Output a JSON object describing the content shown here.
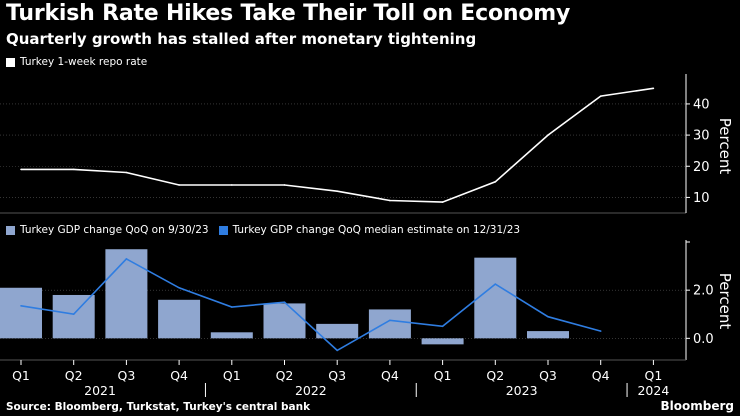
{
  "header": {
    "title": "Turkish Rate Hikes Take Their Toll on Economy",
    "subtitle": "Quarterly growth has stalled after monetary tightening"
  },
  "footer": {
    "source": "Source: Bloomberg, Turkstat, Turkey's central bank",
    "brand": "Bloomberg"
  },
  "colors": {
    "background": "#000000",
    "repo_line": "#ffffff",
    "gdp_bar": "#8fa6cf",
    "median_line": "#2f7de1",
    "grid": "#555555"
  },
  "chart_data": [
    {
      "type": "line",
      "legend": [
        "Turkey 1-week repo rate"
      ],
      "ylabel": "Percent",
      "yticks": [
        "10",
        "20",
        "30",
        "40"
      ],
      "ylim": [
        5,
        48
      ],
      "x": [
        "Q1 2021",
        "Q2 2021",
        "Q3 2021",
        "Q4 2021",
        "Q1 2022",
        "Q2 2022",
        "Q3 2022",
        "Q4 2022",
        "Q1 2023",
        "Q2 2023",
        "Q3 2023",
        "Q4 2023",
        "Q1 2024"
      ],
      "series": [
        {
          "name": "Turkey 1-week repo rate",
          "values": [
            19,
            19,
            18,
            14,
            14,
            14,
            12,
            9,
            8.5,
            15,
            30,
            42.5,
            45
          ]
        }
      ]
    },
    {
      "type": "bar",
      "legend": [
        "Turkey GDP change QoQ on 9/30/23",
        "Turkey GDP change QoQ median estimate on 12/31/23"
      ],
      "ylabel": "Percent",
      "yticks": [
        "0.0",
        "2.0"
      ],
      "ylim": [
        -0.9,
        4.0
      ],
      "categories": [
        "Q1",
        "Q2",
        "Q3",
        "Q4",
        "Q1",
        "Q2",
        "Q3",
        "Q4",
        "Q1",
        "Q2",
        "Q3",
        "Q4",
        "Q1"
      ],
      "years": [
        "2021",
        "2022",
        "2023",
        "2024"
      ],
      "series": [
        {
          "name": "Turkey GDP change QoQ on 9/30/23",
          "values": [
            2.1,
            1.8,
            3.7,
            1.6,
            0.25,
            1.45,
            0.6,
            1.2,
            -0.25,
            3.35,
            0.3,
            null,
            null
          ]
        },
        {
          "name": "Turkey GDP change QoQ median estimate on 12/31/23",
          "values": [
            1.35,
            1.0,
            3.3,
            2.1,
            1.3,
            1.5,
            -0.5,
            0.75,
            0.5,
            2.25,
            0.9,
            0.3,
            null
          ]
        }
      ]
    }
  ]
}
